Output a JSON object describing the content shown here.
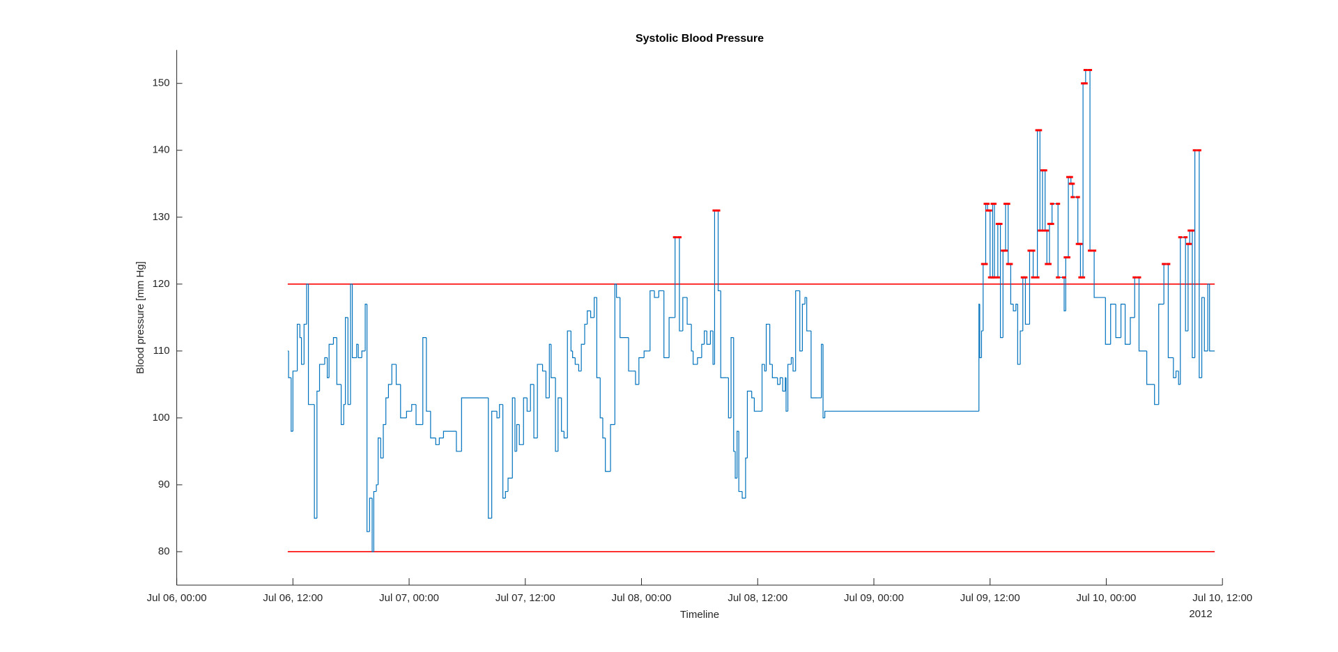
{
  "chart_data": {
    "type": "stairs",
    "title": "Systolic Blood Pressure",
    "x_label": "Timeline",
    "y_label": "Blood pressure [mm Hg]",
    "x_secondary_label": "2012",
    "xlim": [
      "2012-07-06T00:00",
      "2012-07-10T12:00"
    ],
    "xticks": [
      {
        "value": "2012-07-06T00:00",
        "label": "Jul 06, 00:00"
      },
      {
        "value": "2012-07-06T12:00",
        "label": "Jul 06, 12:00"
      },
      {
        "value": "2012-07-07T00:00",
        "label": "Jul 07, 00:00"
      },
      {
        "value": "2012-07-07T12:00",
        "label": "Jul 07, 12:00"
      },
      {
        "value": "2012-07-08T00:00",
        "label": "Jul 08, 00:00"
      },
      {
        "value": "2012-07-08T12:00",
        "label": "Jul 08, 12:00"
      },
      {
        "value": "2012-07-09T00:00",
        "label": "Jul 09, 00:00"
      },
      {
        "value": "2012-07-09T12:00",
        "label": "Jul 09, 12:00"
      },
      {
        "value": "2012-07-10T00:00",
        "label": "Jul 10, 00:00"
      },
      {
        "value": "2012-07-10T12:00",
        "label": "Jul 10, 12:00"
      }
    ],
    "ylim": [
      75,
      155
    ],
    "yticks": [
      80,
      90,
      100,
      110,
      120,
      130,
      140,
      150
    ],
    "grid": false,
    "color": "#0072bd",
    "reference_lines": [
      {
        "value": 120,
        "color": "#ff0000"
      },
      {
        "value": 80,
        "color": "#ff0000"
      }
    ],
    "highlight_above": 120,
    "highlight_color": "#ff0000",
    "x": [
      "2012-07-06T11:28",
      "2012-07-06T11:33",
      "2012-07-06T11:49",
      "2012-07-06T12:00",
      "2012-07-06T12:27",
      "2012-07-06T12:43",
      "2012-07-06T12:53",
      "2012-07-06T13:09",
      "2012-07-06T13:25",
      "2012-07-06T13:36",
      "2012-07-06T14:13",
      "2012-07-06T14:29",
      "2012-07-06T14:45",
      "2012-07-06T15:17",
      "2012-07-06T15:33",
      "2012-07-06T15:44",
      "2012-07-06T16:11",
      "2012-07-06T16:32",
      "2012-07-06T16:59",
      "2012-07-06T17:15",
      "2012-07-06T17:25",
      "2012-07-06T17:41",
      "2012-07-06T17:57",
      "2012-07-06T18:08",
      "2012-07-06T18:35",
      "2012-07-06T18:45",
      "2012-07-06T19:07",
      "2012-07-06T19:28",
      "2012-07-06T19:39",
      "2012-07-06T19:55",
      "2012-07-06T20:11",
      "2012-07-06T20:21",
      "2012-07-06T20:37",
      "2012-07-06T20:48",
      "2012-07-06T21:04",
      "2012-07-06T21:20",
      "2012-07-06T21:36",
      "2012-07-06T21:52",
      "2012-07-06T22:13",
      "2012-07-06T22:40",
      "2012-07-06T23:07",
      "2012-07-06T23:44",
      "2012-07-07T00:16",
      "2012-07-07T00:43",
      "2012-07-07T01:15",
      "2012-07-07T01:25",
      "2012-07-07T01:47",
      "2012-07-07T02:13",
      "2012-07-07T02:45",
      "2012-07-07T03:07",
      "2012-07-07T03:33",
      "2012-07-07T04:53",
      "2012-07-07T05:25",
      "2012-07-07T08:11",
      "2012-07-07T08:32",
      "2012-07-07T09:04",
      "2012-07-07T09:20",
      "2012-07-07T09:41",
      "2012-07-07T09:57",
      "2012-07-07T10:13",
      "2012-07-07T10:40",
      "2012-07-07T10:56",
      "2012-07-07T11:07",
      "2012-07-07T11:23",
      "2012-07-07T11:49",
      "2012-07-07T12:11",
      "2012-07-07T12:32",
      "2012-07-07T12:53",
      "2012-07-07T13:15",
      "2012-07-07T13:47",
      "2012-07-07T14:08",
      "2012-07-07T14:29",
      "2012-07-07T14:40",
      "2012-07-07T15:07",
      "2012-07-07T15:23",
      "2012-07-07T15:44",
      "2012-07-07T16:00",
      "2012-07-07T16:21",
      "2012-07-07T16:43",
      "2012-07-07T16:53",
      "2012-07-07T17:09",
      "2012-07-07T17:31",
      "2012-07-07T17:47",
      "2012-07-07T18:08",
      "2012-07-07T18:24",
      "2012-07-07T18:45",
      "2012-07-07T19:07",
      "2012-07-07T19:23",
      "2012-07-07T19:44",
      "2012-07-07T20:00",
      "2012-07-07T20:16",
      "2012-07-07T20:48",
      "2012-07-07T21:15",
      "2012-07-07T21:25",
      "2012-07-07T21:47",
      "2012-07-07T22:40",
      "2012-07-07T23:07",
      "2012-07-07T23:23",
      "2012-07-07T23:44",
      "2012-07-08T00:16",
      "2012-07-08T00:37",
      "2012-07-08T00:53",
      "2012-07-08T01:20",
      "2012-07-08T01:47",
      "2012-07-08T02:19",
      "2012-07-08T02:51",
      "2012-07-08T03:17",
      "2012-07-08T03:28",
      "2012-07-08T03:55",
      "2012-07-08T04:16",
      "2012-07-08T04:43",
      "2012-07-08T05:09",
      "2012-07-08T05:20",
      "2012-07-08T05:47",
      "2012-07-08T06:13",
      "2012-07-08T06:29",
      "2012-07-08T06:45",
      "2012-07-08T07:07",
      "2012-07-08T07:23",
      "2012-07-08T07:33",
      "2012-07-08T07:55",
      "2012-07-08T08:11",
      "2012-07-08T08:48",
      "2012-07-08T08:59",
      "2012-07-08T09:15",
      "2012-07-08T09:31",
      "2012-07-08T09:41",
      "2012-07-08T09:52",
      "2012-07-08T10:03",
      "2012-07-08T10:24",
      "2012-07-08T10:45",
      "2012-07-08T10:56",
      "2012-07-08T11:23",
      "2012-07-08T11:39",
      "2012-07-08T12:27",
      "2012-07-08T12:43",
      "2012-07-08T12:53",
      "2012-07-08T13:15",
      "2012-07-08T13:31",
      "2012-07-08T14:03",
      "2012-07-08T14:19",
      "2012-07-08T14:35",
      "2012-07-08T14:51",
      "2012-07-08T14:56",
      "2012-07-08T15:07",
      "2012-07-08T15:28",
      "2012-07-08T15:39",
      "2012-07-08T15:55",
      "2012-07-08T16:21",
      "2012-07-08T16:37",
      "2012-07-08T16:53",
      "2012-07-08T17:04",
      "2012-07-08T17:31",
      "2012-07-08T18:13",
      "2012-07-08T18:35",
      "2012-07-08T18:45",
      "2012-07-08T18:56",
      "2012-07-09T10:51",
      "2012-07-09T10:56",
      "2012-07-09T11:07",
      "2012-07-09T11:17",
      "2012-07-09T11:33",
      "2012-07-09T11:44",
      "2012-07-09T12:00",
      "2012-07-09T12:16",
      "2012-07-09T12:27",
      "2012-07-09T12:48",
      "2012-07-09T13:04",
      "2012-07-09T13:20",
      "2012-07-09T13:36",
      "2012-07-09T13:52",
      "2012-07-09T14:08",
      "2012-07-09T14:24",
      "2012-07-09T14:40",
      "2012-07-09T14:51",
      "2012-07-09T15:07",
      "2012-07-09T15:23",
      "2012-07-09T15:39",
      "2012-07-09T16:05",
      "2012-07-09T16:27",
      "2012-07-09T16:53",
      "2012-07-09T17:09",
      "2012-07-09T17:25",
      "2012-07-09T17:41",
      "2012-07-09T17:52",
      "2012-07-09T18:08",
      "2012-07-09T18:24",
      "2012-07-09T19:01",
      "2012-07-09T19:39",
      "2012-07-09T19:49",
      "2012-07-09T20:05",
      "2012-07-09T20:21",
      "2012-07-09T20:32",
      "2012-07-09T21:04",
      "2012-07-09T21:20",
      "2012-07-09T21:36",
      "2012-07-09T21:52",
      "2012-07-09T22:19",
      "2012-07-09T22:45",
      "2012-07-09T23:55",
      "2012-07-10T00:27",
      "2012-07-10T00:59",
      "2012-07-10T01:31",
      "2012-07-10T01:57",
      "2012-07-10T02:29",
      "2012-07-10T02:56",
      "2012-07-10T03:23",
      "2012-07-10T04:11",
      "2012-07-10T04:59",
      "2012-07-10T05:25",
      "2012-07-10T05:57",
      "2012-07-10T06:24",
      "2012-07-10T06:56",
      "2012-07-10T07:12",
      "2012-07-10T07:28",
      "2012-07-10T07:39",
      "2012-07-10T08:11",
      "2012-07-10T08:27",
      "2012-07-10T08:37",
      "2012-07-10T08:53",
      "2012-07-10T09:09",
      "2012-07-10T09:36",
      "2012-07-10T09:52",
      "2012-07-10T10:08",
      "2012-07-10T10:29",
      "2012-07-10T10:40",
      "2012-07-10T11:12"
    ],
    "values": [
      110,
      106,
      98,
      107,
      114,
      112,
      108,
      114,
      120,
      102,
      85,
      104,
      108,
      109,
      106,
      111,
      112,
      105,
      99,
      102,
      115,
      102,
      120,
      109,
      111,
      109,
      110,
      117,
      83,
      88,
      80,
      89,
      90,
      97,
      94,
      99,
      103,
      105,
      108,
      105,
      100,
      101,
      102,
      99,
      99,
      112,
      101,
      97,
      96,
      97,
      98,
      95,
      103,
      85,
      101,
      100,
      102,
      88,
      89,
      91,
      103,
      95,
      99,
      96,
      103,
      101,
      105,
      97,
      108,
      107,
      103,
      111,
      106,
      95,
      103,
      98,
      97,
      113,
      110,
      109,
      108,
      107,
      111,
      114,
      116,
      115,
      118,
      106,
      100,
      97,
      92,
      99,
      120,
      118,
      112,
      107,
      107,
      105,
      109,
      110,
      110,
      119,
      118,
      119,
      109,
      115,
      115,
      127,
      113,
      118,
      114,
      110,
      108,
      109,
      111,
      113,
      111,
      113,
      108,
      131,
      119,
      106,
      106,
      100,
      112,
      95,
      91,
      98,
      89,
      88,
      94,
      104,
      103,
      101,
      108,
      107,
      114,
      108,
      106,
      105,
      106,
      104,
      106,
      101,
      108,
      109,
      107,
      119,
      110,
      117,
      118,
      113,
      103,
      103,
      111,
      100,
      101,
      117,
      109,
      113,
      123,
      132,
      131,
      121,
      132,
      121,
      129,
      112,
      125,
      132,
      123,
      117,
      116,
      117,
      108,
      113,
      121,
      114,
      125,
      121,
      143,
      128,
      137,
      128,
      123,
      129,
      132,
      121,
      116,
      124,
      136,
      135,
      133,
      126,
      121,
      150,
      152,
      125,
      118,
      111,
      117,
      112,
      117,
      111,
      115,
      121,
      110,
      105,
      102,
      117,
      123,
      109,
      106,
      107,
      105,
      127,
      113,
      126,
      128,
      109,
      140,
      106,
      118,
      110,
      120,
      110,
      110
    ]
  }
}
